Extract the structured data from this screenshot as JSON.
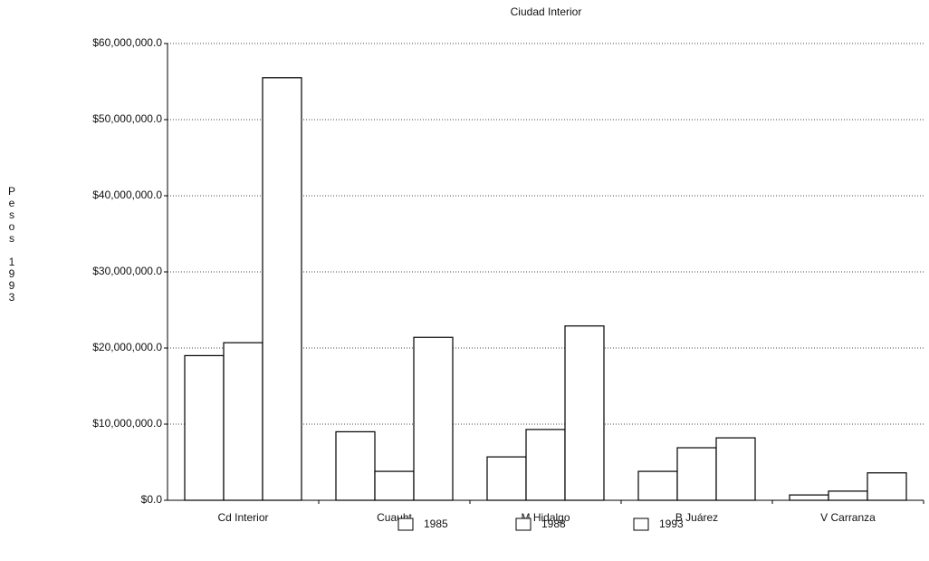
{
  "chart_data": {
    "type": "bar",
    "title": "Ciudad Interior",
    "y_label": "Pesos 1993",
    "categories": [
      "Cd Interior",
      "Cuauht",
      "M Hidalgo",
      "B Juárez",
      "V Carranza"
    ],
    "series": [
      {
        "name": "1985",
        "color": "#ffffff",
        "values": [
          19000000,
          9000000,
          5700000,
          3800000,
          700000
        ]
      },
      {
        "name": "1988",
        "color": "#ffffff",
        "values": [
          20700000,
          3800000,
          9300000,
          6900000,
          1200000
        ]
      },
      {
        "name": "1993",
        "color": "#ffffff",
        "values": [
          55500000,
          21400000,
          22900000,
          8200000,
          3600000
        ]
      }
    ],
    "ylim": [
      0,
      60000000
    ],
    "yticks": [
      {
        "value": 0,
        "label": "$0.0"
      },
      {
        "value": 10000000,
        "label": "$10,000,000.0"
      },
      {
        "value": 20000000,
        "label": "$20,000,000.0"
      },
      {
        "value": 30000000,
        "label": "$30,000,000.0"
      },
      {
        "value": 40000000,
        "label": "$40,000,000.0"
      },
      {
        "value": 50000000,
        "label": "$50,000,000.0"
      },
      {
        "value": 60000000,
        "label": "$60,000,000.0"
      }
    ],
    "grid": true,
    "legend": "bottom"
  }
}
